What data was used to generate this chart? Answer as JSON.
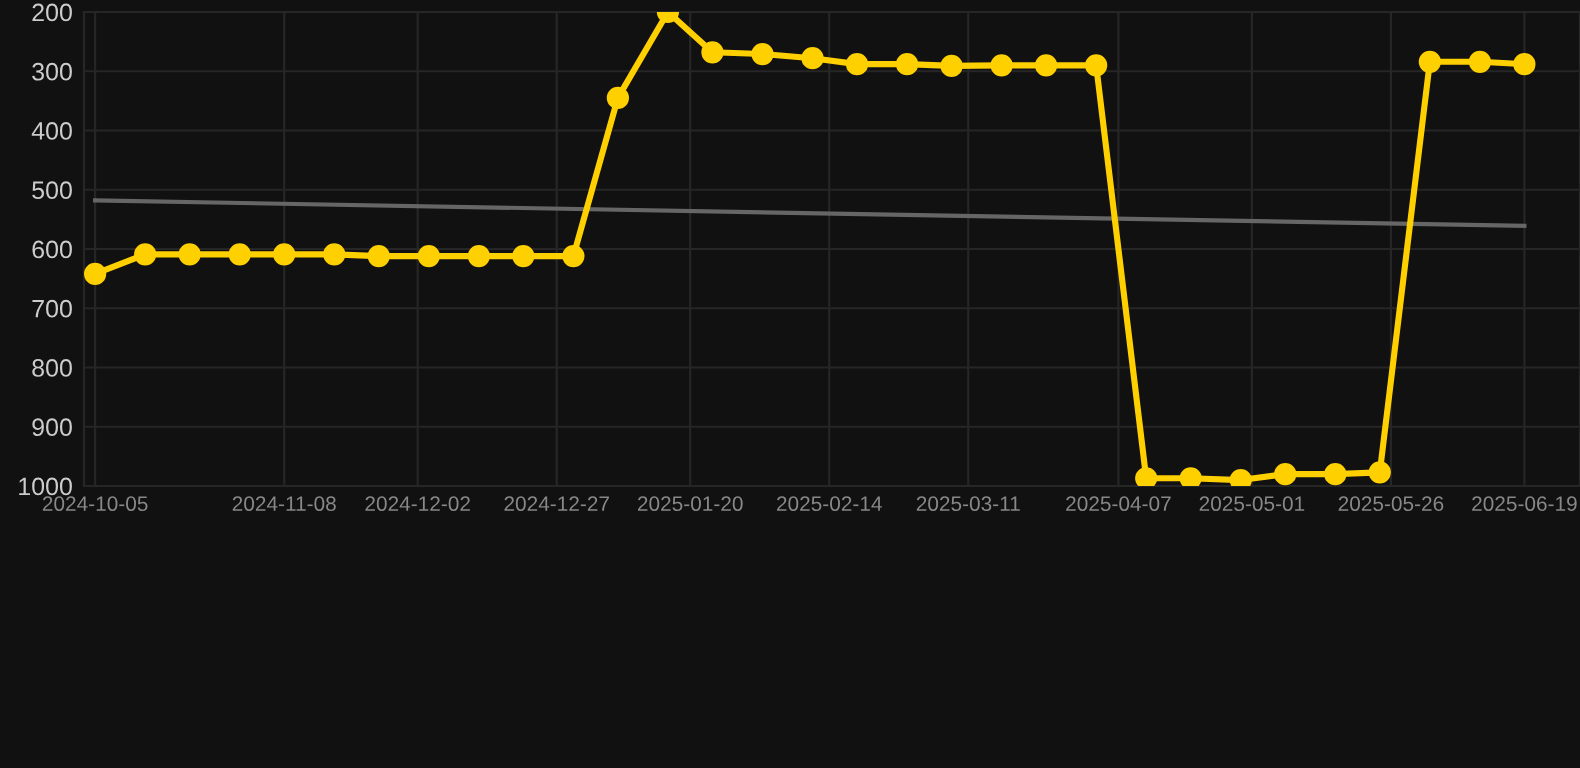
{
  "chart_data": {
    "type": "line",
    "x": [
      "2024-10-05",
      "2024-10-14",
      "2024-10-22",
      "2024-10-31",
      "2024-11-08",
      "2024-11-17",
      "2024-11-25",
      "2024-12-04",
      "2024-12-13",
      "2024-12-21",
      "2024-12-30",
      "2025-01-07",
      "2025-01-16",
      "2025-01-24",
      "2025-02-02",
      "2025-02-11",
      "2025-02-19",
      "2025-02-28",
      "2025-03-08",
      "2025-03-17",
      "2025-03-25",
      "2025-04-03",
      "2025-04-12",
      "2025-04-20",
      "2025-04-29",
      "2025-05-07",
      "2025-05-16",
      "2025-05-24",
      "2025-06-02",
      "2025-06-11",
      "2025-06-19"
    ],
    "series": [
      {
        "color": "#ffd000",
        "marker": "circle",
        "values": [
          642,
          609,
          609,
          609,
          609,
          609,
          612,
          612,
          612,
          612,
          612,
          345,
          200,
          268,
          271,
          278,
          288,
          288,
          291,
          290,
          290,
          290,
          987,
          987,
          990,
          980,
          980,
          977,
          284,
          284,
          288
        ]
      },
      {
        "type": "line",
        "color": "#666666",
        "marker": "none",
        "x": [
          "2024-10-05",
          "2025-06-19"
        ],
        "values": [
          518,
          561
        ]
      }
    ],
    "xlim": [
      "2024-10-03",
      "2025-06-29"
    ],
    "xticks": [
      "2024-10-05",
      "2024-11-08",
      "2024-12-02",
      "2024-12-27",
      "2025-01-20",
      "2025-02-14",
      "2025-03-11",
      "2025-04-07",
      "2025-05-01",
      "2025-05-26",
      "2025-06-19"
    ],
    "ylim": [
      1000,
      200
    ],
    "yticks": [
      200,
      300,
      400,
      500,
      600,
      700,
      800,
      900,
      1000
    ],
    "grid": true,
    "legend": false
  }
}
